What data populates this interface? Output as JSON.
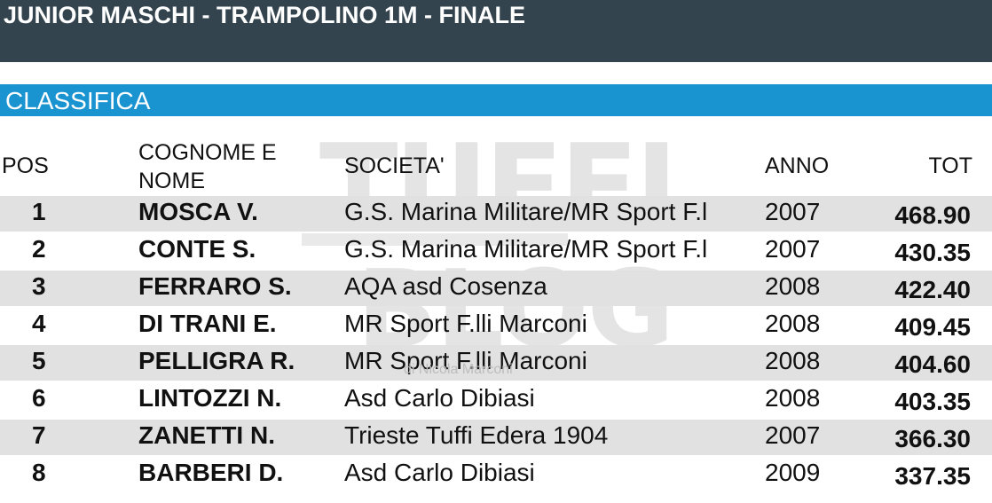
{
  "header": {
    "title": "JUNIOR MASCHI - TRAMPOLINO 1M - FINALE"
  },
  "section": {
    "label": "CLASSIFICA"
  },
  "watermark": {
    "brand_top": "TUFFI",
    "brand_bottom": "BLOG",
    "credit": "di Nicola Marconi"
  },
  "table": {
    "columns": {
      "pos": "POS",
      "name_line1": "COGNOME E",
      "name_line2": "NOME",
      "societa": "SOCIETA'",
      "anno": "ANNO",
      "tot": "TOT"
    },
    "rows": [
      {
        "pos": "1",
        "name": "MOSCA V.",
        "societa": "G.S. Marina Militare/MR Sport F.l",
        "anno": "2007",
        "tot": "468.90"
      },
      {
        "pos": "2",
        "name": "CONTE S.",
        "societa": "G.S. Marina Militare/MR Sport F.l",
        "anno": "2007",
        "tot": "430.35"
      },
      {
        "pos": "3",
        "name": "FERRARO S.",
        "societa": "AQA asd Cosenza",
        "anno": "2008",
        "tot": "422.40"
      },
      {
        "pos": "4",
        "name": "DI TRANI E.",
        "societa": "MR Sport F.lli Marconi",
        "anno": "2008",
        "tot": "409.45"
      },
      {
        "pos": "5",
        "name": "PELLIGRA R.",
        "societa": "MR Sport F.lli Marconi",
        "anno": "2008",
        "tot": "404.60"
      },
      {
        "pos": "6",
        "name": "LINTOZZI N.",
        "societa": "Asd Carlo Dibiasi",
        "anno": "2008",
        "tot": "403.35"
      },
      {
        "pos": "7",
        "name": "ZANETTI N.",
        "societa": "Trieste Tuffi Edera 1904",
        "anno": "2007",
        "tot": "366.30"
      },
      {
        "pos": "8",
        "name": "BARBERI D.",
        "societa": "Asd Carlo Dibiasi",
        "anno": "2009",
        "tot": "337.35"
      }
    ]
  }
}
